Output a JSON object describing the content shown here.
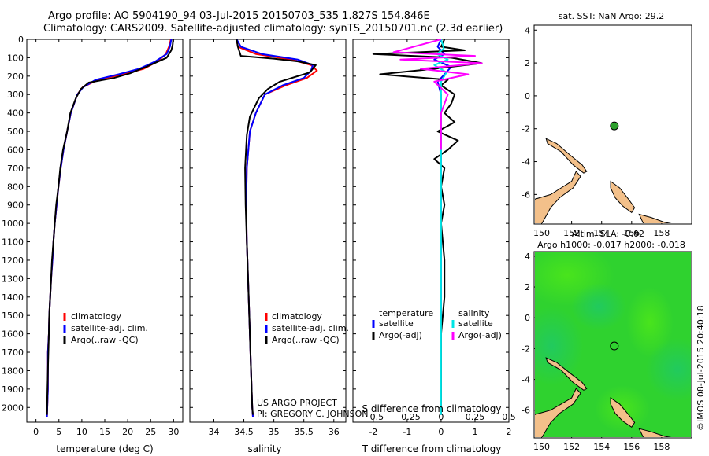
{
  "header": {
    "line1": "Argo profile: AO 5904190_94 03-Jul-2015 20150703_535 1.827S 154.846E",
    "line2": "Climatology: CARS2009. Satellite-adjusted climatology: synTS_20150701.nc (2.3d earlier)"
  },
  "sst_title": "sat. SST: NaN Argo: 29.2",
  "sla_title1": "Altim. SLA: -0.02",
  "sla_title2": "Argo h1000: -0.017 h2000: -0.018",
  "watermark": "©IMOS 08-Jul-2015 20:40:18",
  "project_line1": "US ARGO PROJECT",
  "project_line2": "PI: GREGORY C. JOHNSON",
  "colors": {
    "climatology": "#ff0000",
    "satellite": "#0000ff",
    "argo": "#000000",
    "sal_satellite": "#00e5e5",
    "sal_argo": "#ff00ff",
    "land": "#f3c08a",
    "float_marker": "#2ca02c"
  },
  "chart_data": [
    {
      "type": "line",
      "panel": "temperature",
      "xlabel": "temperature (deg C)",
      "xlim": [
        -2,
        32
      ],
      "xticks": [
        0,
        5,
        10,
        15,
        20,
        25,
        30
      ],
      "ylim": [
        2080,
        0
      ],
      "yticks": [
        0,
        100,
        200,
        300,
        400,
        500,
        600,
        700,
        800,
        900,
        1000,
        1100,
        1200,
        1300,
        1400,
        1500,
        1600,
        1700,
        1800,
        1900,
        2000
      ],
      "legend": [
        "climatology",
        "satellite-adj. clim.",
        "Argo(..raw -QC)"
      ],
      "series": [
        {
          "name": "climatology",
          "color": "#ff0000",
          "x": [
            29.4,
            29.0,
            28.3,
            26.5,
            23.5,
            19.0,
            13.5,
            10.2,
            9.0,
            7.6,
            6.8,
            6.0,
            5.4,
            4.9,
            4.5,
            4.1,
            3.8,
            3.6,
            3.3,
            3.1,
            2.9,
            2.8,
            2.6,
            2.6,
            2.4
          ],
          "y": [
            0,
            40,
            80,
            120,
            160,
            190,
            220,
            260,
            300,
            400,
            500,
            600,
            700,
            800,
            900,
            1000,
            1100,
            1200,
            1300,
            1400,
            1500,
            1600,
            1700,
            1900,
            2050
          ]
        },
        {
          "name": "satellite-adj. clim.",
          "color": "#0000ff",
          "x": [
            29.5,
            29.2,
            28.5,
            26.0,
            22.5,
            18.0,
            13.0,
            10.3,
            9.0,
            7.6,
            6.8,
            6.0,
            5.4,
            4.9,
            4.5,
            4.1,
            3.8,
            3.6,
            3.3,
            3.1,
            2.9,
            2.8,
            2.6,
            2.6,
            2.4
          ],
          "y": [
            0,
            40,
            80,
            120,
            160,
            190,
            220,
            260,
            300,
            400,
            500,
            600,
            700,
            800,
            900,
            1000,
            1100,
            1200,
            1300,
            1400,
            1500,
            1600,
            1700,
            1900,
            2050
          ]
        },
        {
          "name": "Argo(..raw -QC)",
          "color": "#000000",
          "x": [
            29.9,
            29.8,
            29.5,
            28.5,
            24.0,
            20.5,
            17.0,
            11.5,
            9.8,
            8.7,
            7.5,
            6.8,
            5.9,
            5.3,
            4.9,
            4.4,
            4.1,
            3.8,
            3.5,
            3.3,
            3.1,
            2.9,
            2.8,
            2.7,
            2.6,
            2.5,
            2.4
          ],
          "y": [
            0,
            30,
            60,
            100,
            150,
            185,
            210,
            235,
            270,
            320,
            400,
            500,
            600,
            700,
            800,
            900,
            1000,
            1100,
            1200,
            1300,
            1400,
            1500,
            1600,
            1700,
            1800,
            1900,
            2040
          ]
        }
      ]
    },
    {
      "type": "line",
      "panel": "salinity",
      "xlabel": "salinity",
      "xlim": [
        33.6,
        36.2
      ],
      "xticks": [
        34,
        34.5,
        35,
        35.5,
        36
      ],
      "ylim": [
        2080,
        0
      ],
      "legend": [
        "climatology",
        "satellite-adj. clim.",
        "Argo(..raw -QC)"
      ],
      "series": [
        {
          "name": "climatology",
          "color": "#ff0000",
          "x": [
            34.38,
            34.4,
            34.7,
            35.3,
            35.62,
            35.72,
            35.55,
            35.2,
            34.85,
            34.7,
            34.6,
            34.55,
            34.54,
            34.55,
            34.57,
            34.59,
            34.61,
            34.63,
            34.64,
            34.65
          ],
          "y": [
            0,
            40,
            80,
            110,
            140,
            170,
            210,
            250,
            300,
            400,
            500,
            700,
            900,
            1100,
            1300,
            1500,
            1700,
            1900,
            2000,
            2050
          ]
        },
        {
          "name": "satellite-adj. clim.",
          "color": "#0000ff",
          "x": [
            34.38,
            34.45,
            34.8,
            35.4,
            35.65,
            35.62,
            35.5,
            35.15,
            34.85,
            34.7,
            34.6,
            34.55,
            34.54,
            34.55,
            34.57,
            34.59,
            34.61,
            34.63,
            34.64,
            34.65
          ],
          "y": [
            0,
            40,
            80,
            110,
            140,
            170,
            210,
            250,
            300,
            400,
            500,
            700,
            900,
            1100,
            1300,
            1500,
            1700,
            1900,
            2000,
            2050
          ]
        },
        {
          "name": "Argo(..raw -QC)",
          "color": "#000000",
          "x": [
            34.38,
            34.4,
            34.45,
            35.0,
            35.4,
            35.7,
            35.6,
            35.1,
            34.9,
            34.75,
            34.6,
            34.55,
            34.52,
            34.53,
            34.55,
            34.57,
            34.59,
            34.61,
            34.63,
            34.64,
            34.65
          ],
          "y": [
            0,
            40,
            90,
            105,
            120,
            140,
            180,
            230,
            270,
            320,
            420,
            520,
            700,
            900,
            1100,
            1300,
            1500,
            1700,
            1900,
            2000,
            2040
          ]
        }
      ]
    },
    {
      "type": "line",
      "panel": "difference",
      "xlabel": "T difference from climatology",
      "xlabel_top": "S difference from climatology",
      "xlim": [
        -2.6,
        2.0
      ],
      "xticks": [
        -2,
        -1,
        0,
        1,
        2
      ],
      "sticks": [
        -0.5,
        -0.25,
        0,
        0.25,
        0.5
      ],
      "ylim": [
        2080,
        0
      ],
      "legend": [
        "temperature",
        "satellite",
        "Argo(-adj)",
        "salinity",
        "satellite",
        "Argo(-adj)"
      ],
      "series": [
        {
          "name": "temperature satellite",
          "color": "#0000ff",
          "x": [
            0.0,
            -0.1,
            0.1,
            -0.2,
            0.3,
            0.1,
            -0.1,
            0.0,
            0.0,
            0.0,
            0.0,
            0.0,
            0.0
          ],
          "y": [
            0,
            40,
            80,
            110,
            150,
            190,
            230,
            300,
            500,
            800,
            1200,
            1600,
            2040
          ]
        },
        {
          "name": "temperature Argo(-adj)",
          "color": "#000000",
          "x": [
            0.1,
            0.0,
            0.7,
            -2.0,
            0.3,
            1.2,
            -0.2,
            -1.8,
            0.2,
            0.0,
            0.4,
            0.3,
            0.1,
            0.4,
            -0.1,
            0.5,
            0.2,
            -0.2,
            0.1,
            0.0,
            0.1,
            0.0,
            0.1,
            0.1,
            0.0,
            0.0,
            0.0
          ],
          "y": [
            0,
            40,
            60,
            80,
            100,
            130,
            160,
            190,
            220,
            250,
            300,
            350,
            400,
            450,
            500,
            550,
            600,
            650,
            700,
            800,
            900,
            1000,
            1200,
            1400,
            1600,
            1800,
            2040
          ]
        },
        {
          "name": "salinity satellite",
          "color": "#00e5e5",
          "x": [
            0.0,
            0.02,
            -0.03,
            0.05,
            -0.05,
            0.04,
            0.0,
            0.0,
            0.0,
            0.0,
            0.0
          ],
          "y": [
            0,
            50,
            80,
            110,
            140,
            180,
            230,
            400,
            800,
            1400,
            2040
          ]
        },
        {
          "name": "salinity Argo(-adj)",
          "color": "#ff00ff",
          "x": [
            0.0,
            -0.35,
            0.25,
            -0.3,
            0.3,
            -0.15,
            0.2,
            -0.05,
            0.05,
            0.0,
            0.0
          ],
          "y": [
            0,
            70,
            90,
            110,
            130,
            160,
            190,
            230,
            300,
            400,
            600
          ]
        }
      ]
    },
    {
      "type": "scatter",
      "panel": "map_sst",
      "title": "sat. SST: NaN Argo: 29.2",
      "xlim": [
        149.5,
        160
      ],
      "ylim": [
        -7.8,
        4.3
      ],
      "xticks": [
        150,
        152,
        154,
        156,
        158
      ],
      "yticks": [
        -6,
        -4,
        -2,
        0,
        2,
        4
      ],
      "points": [
        {
          "lon": 154.846,
          "lat": -1.827
        }
      ]
    },
    {
      "type": "heatmap",
      "panel": "map_sla",
      "title": "Altim. SLA: -0.02",
      "subtitle": "Argo h1000: -0.017 h2000: -0.018",
      "xlim": [
        149.5,
        160
      ],
      "ylim": [
        -7.8,
        4.3
      ],
      "xticks": [
        150,
        152,
        154,
        156,
        158
      ],
      "yticks": [
        -6,
        -4,
        -2,
        0,
        2,
        4
      ],
      "points": [
        {
          "lon": 154.846,
          "lat": -1.827
        }
      ]
    }
  ]
}
